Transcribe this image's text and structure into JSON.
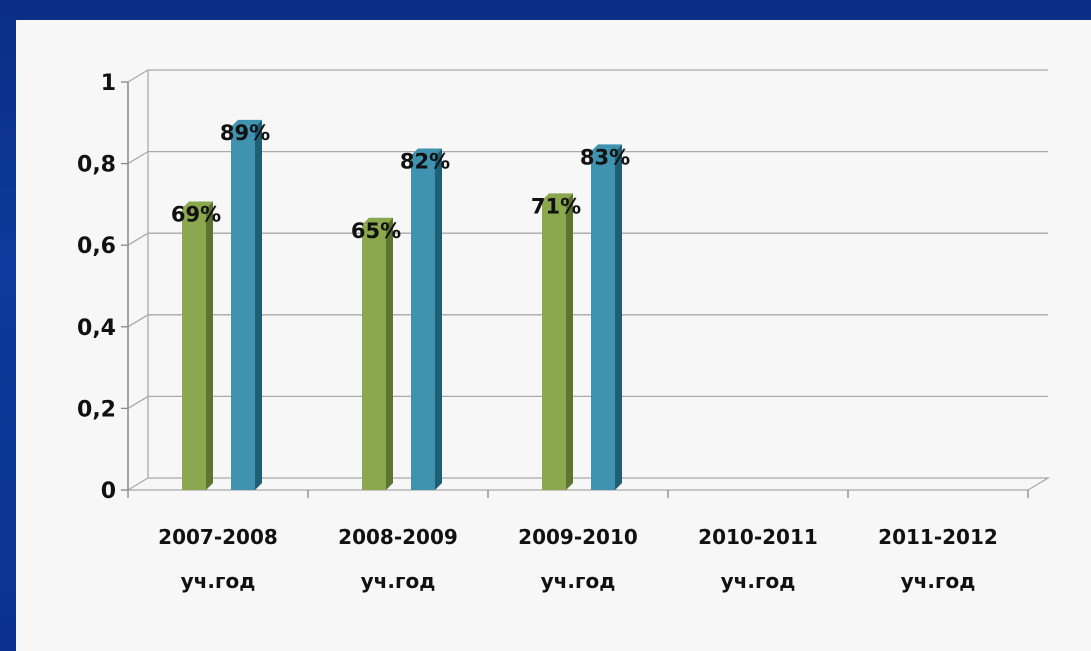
{
  "chart_data": {
    "type": "bar",
    "categories": [
      [
        "2007-2008",
        "уч.год"
      ],
      [
        "2008-2009",
        "уч.год"
      ],
      [
        "2009-2010",
        "уч.год"
      ],
      [
        "2010-2011",
        "уч.год"
      ],
      [
        "2011-2012",
        "уч.год"
      ]
    ],
    "series": [
      {
        "values": [
          0.69,
          0.65,
          0.71,
          null,
          null
        ],
        "labels": [
          "69%",
          "65%",
          "71%",
          "",
          ""
        ],
        "color": "#8ba84e",
        "side_color": "#5d7530"
      },
      {
        "values": [
          0.89,
          0.82,
          0.83,
          null,
          null
        ],
        "labels": [
          "89%",
          "82%",
          "83%",
          "",
          ""
        ],
        "color": "#3f93ae",
        "side_color": "#1f5f75"
      }
    ],
    "y_ticks": [
      "0",
      "0,2",
      "0,4",
      "0,6",
      "0,8",
      "1"
    ],
    "ylim": [
      0,
      1
    ],
    "grid": true,
    "legend": "none",
    "title": "",
    "xlabel": "",
    "ylabel": ""
  },
  "theme": {
    "background": "#0b3290",
    "panel": "#f7f7f7",
    "grid_color": "#a9a9a9"
  }
}
